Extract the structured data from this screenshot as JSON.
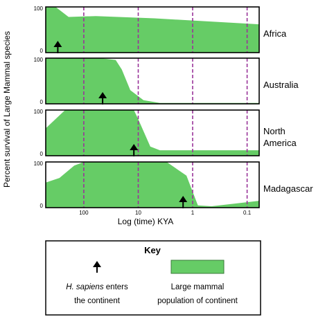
{
  "chart_data": {
    "type": "area",
    "ylabel": "Percent survival of Large Mammal species",
    "xlabel": "Log (time) KYA",
    "x_scale": "log",
    "x_reversed": true,
    "xlim": [
      500,
      0.06
    ],
    "ylim": [
      0,
      100
    ],
    "x_ticks": [
      {
        "value": 100,
        "label": "100"
      },
      {
        "value": 10,
        "label": "10"
      },
      {
        "value": 1,
        "label": "1"
      },
      {
        "value": 0.1,
        "label": "0.1"
      }
    ],
    "y_ticks": [
      {
        "value": 0,
        "label": "0"
      },
      {
        "value": 100,
        "label": "100"
      }
    ],
    "gridlines_x": [
      100,
      10,
      1,
      0.1
    ],
    "gridline_style": "dashed purple vertical",
    "fill_color": "#66cc66",
    "gridline_color": "#993399",
    "panels": [
      {
        "name": "Africa",
        "arrival_kya": 300,
        "points": [
          [
            500,
            100
          ],
          [
            330,
            100
          ],
          [
            190,
            78
          ],
          [
            60,
            80
          ],
          [
            5,
            75
          ],
          [
            0.06,
            62
          ]
        ]
      },
      {
        "name": "Australia",
        "arrival_kya": 45,
        "points": [
          [
            500,
            99
          ],
          [
            50,
            100
          ],
          [
            26,
            96
          ],
          [
            20,
            75
          ],
          [
            14,
            30
          ],
          [
            8,
            8
          ],
          [
            4,
            2
          ],
          [
            0.06,
            2
          ]
        ]
      },
      {
        "name": "North America",
        "arrival_kya": 12,
        "points": [
          [
            500,
            60
          ],
          [
            220,
            100
          ],
          [
            12,
            100
          ],
          [
            10,
            80
          ],
          [
            6,
            20
          ],
          [
            4,
            12
          ],
          [
            0.06,
            12
          ]
        ]
      },
      {
        "name": "Madagascar",
        "arrival_kya": 1.5,
        "points": [
          [
            500,
            55
          ],
          [
            280,
            65
          ],
          [
            150,
            92
          ],
          [
            100,
            100
          ],
          [
            3,
            100
          ],
          [
            1.3,
            70
          ],
          [
            0.8,
            5
          ],
          [
            0.45,
            3
          ],
          [
            0.06,
            15
          ]
        ]
      }
    ],
    "region_labels": [
      [
        "Africa"
      ],
      [
        "Australia"
      ],
      [
        "North",
        "America"
      ],
      [
        "Madagascar"
      ]
    ]
  },
  "key": {
    "title": "Key",
    "arrow_label_italic": "H. sapiens",
    "arrow_label_line1_rest": " enters",
    "arrow_label_line2": "the continent",
    "box_label_line1": "Large mammal",
    "box_label_line2": "population of continent"
  }
}
